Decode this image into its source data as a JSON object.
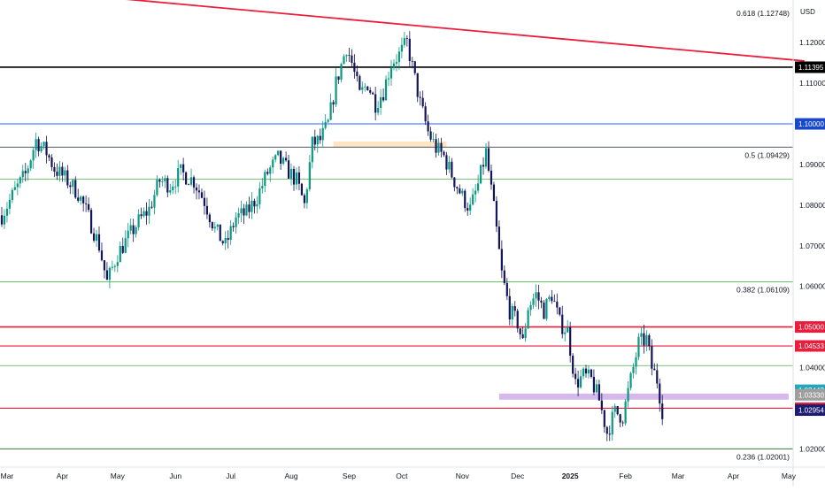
{
  "chart_data": {
    "type": "candlestick",
    "currency": "USD",
    "x_ticks": [
      {
        "label": "Mar",
        "bar": 2
      },
      {
        "label": "Apr",
        "bar": 23
      },
      {
        "label": "May",
        "bar": 44
      },
      {
        "label": "Jun",
        "bar": 66
      },
      {
        "label": "Jul",
        "bar": 87
      },
      {
        "label": "Aug",
        "bar": 110
      },
      {
        "label": "Sep",
        "bar": 132
      },
      {
        "label": "Oct",
        "bar": 152
      },
      {
        "label": "Nov",
        "bar": 175
      },
      {
        "label": "Dec",
        "bar": 196
      },
      {
        "label": "2025",
        "bar": 216,
        "bold": true
      },
      {
        "label": "Feb",
        "bar": 237
      },
      {
        "label": "Mar",
        "bar": 257
      },
      {
        "label": "Apr",
        "bar": 278
      },
      {
        "label": "May",
        "bar": 299
      }
    ],
    "y_ticks": [
      "1.12000",
      "1.11000",
      "1.10000",
      "1.09000",
      "1.08000",
      "1.07000",
      "1.06000",
      "1.04000",
      "1.02000"
    ],
    "ylim": [
      1.0155,
      1.1305
    ],
    "fib_levels": [
      {
        "label": "0.618 (1.12748)",
        "value": 1.12748,
        "show_line": false
      },
      {
        "label": "0.5 (1.09429)",
        "value": 1.09429,
        "show_line": true,
        "color": "#1e222d"
      },
      {
        "label": "0.382 (1.06109)",
        "value": 1.06109,
        "show_line": true,
        "color": "#4caf50"
      },
      {
        "label": "0.236 (1.02001)",
        "value": 1.02001,
        "show_line": true,
        "color": "#1b5e20"
      }
    ],
    "horizontal_lines": [
      {
        "value": 1.11395,
        "color": "#000000",
        "width": 1.6
      },
      {
        "value": 1.1,
        "color": "#2962ff",
        "width": 1
      },
      {
        "value": 1.05,
        "color": "#e91e3c",
        "width": 1.6
      },
      {
        "value": 1.04533,
        "color": "#e91e3c",
        "width": 1.2
      },
      {
        "value": 1.03,
        "color": "#e91e3c",
        "width": 1.2
      },
      {
        "value": 1.0864,
        "color": "#4caf50",
        "width": 0.8
      },
      {
        "value": 1.0405,
        "color": "#4caf50",
        "width": 0.8
      }
    ],
    "price_tags": [
      {
        "label": "1.11395",
        "value": 1.11395,
        "bg": "#000000",
        "fg": "#ffffff"
      },
      {
        "label": "1.10000",
        "value": 1.1,
        "bg": "#1848cc",
        "fg": "#ffffff"
      },
      {
        "label": "1.05000",
        "value": 1.05,
        "bg": "#e91e3c",
        "fg": "#ffffff"
      },
      {
        "label": "1.04533",
        "value": 1.04533,
        "bg": "#e91e3c",
        "fg": "#ffffff"
      },
      {
        "label": "1.03443",
        "value": 1.03443,
        "bg": "#26a6b8",
        "fg": "#ffffff"
      },
      {
        "label": "1.03330",
        "value": 1.0333,
        "bg": "#9e9e9e",
        "fg": "#ffffff"
      },
      {
        "label": "1.03000",
        "value": 1.03,
        "bg": "#e91e3c",
        "fg": "#ffffff"
      },
      {
        "label": "1.02954",
        "value": 1.02954,
        "bg": "#1c1c6e",
        "fg": "#ffffff"
      }
    ],
    "trendline": {
      "start_bar": -2,
      "start_value": 1.1336,
      "end_bar": 305,
      "end_value": 1.1155,
      "color": "#e91e3c"
    },
    "zones": [
      {
        "from_bar": 126,
        "to_bar": 169,
        "low": 1.0943,
        "high": 1.0957,
        "color": "#ffdcb0"
      },
      {
        "from_bar": 189,
        "to_bar": 299,
        "low": 1.0321,
        "high": 1.0336,
        "color": "#c8a2e6"
      }
    ],
    "colors": {
      "up": "#089981",
      "down": "#14145a",
      "axis_text": "#131722",
      "border": "#e0e3eb"
    },
    "anchors": [
      [
        0,
        1.0775
      ],
      [
        5,
        1.0835
      ],
      [
        9,
        1.0875
      ],
      [
        13,
        1.096
      ],
      [
        17,
        1.093
      ],
      [
        20,
        1.089
      ],
      [
        25,
        1.086
      ],
      [
        29,
        1.083
      ],
      [
        33,
        1.077
      ],
      [
        37,
        1.07
      ],
      [
        40,
        1.061
      ],
      [
        44,
        1.068
      ],
      [
        48,
        1.072
      ],
      [
        52,
        1.076
      ],
      [
        56,
        1.079
      ],
      [
        60,
        1.086
      ],
      [
        64,
        1.085
      ],
      [
        68,
        1.088
      ],
      [
        73,
        1.086
      ],
      [
        77,
        1.081
      ],
      [
        81,
        1.074
      ],
      [
        85,
        1.07
      ],
      [
        89,
        1.077
      ],
      [
        93,
        1.078
      ],
      [
        97,
        1.082
      ],
      [
        101,
        1.088
      ],
      [
        105,
        1.0915
      ],
      [
        108,
        1.089
      ],
      [
        112,
        1.086
      ],
      [
        115,
        1.08
      ],
      [
        118,
        1.095
      ],
      [
        121,
        1.096
      ],
      [
        124,
        1.1
      ],
      [
        127,
        1.11
      ],
      [
        131,
        1.119
      ],
      [
        133,
        1.115
      ],
      [
        136,
        1.107
      ],
      [
        139,
        1.11
      ],
      [
        142,
        1.105
      ],
      [
        145,
        1.108
      ],
      [
        148,
        1.115
      ],
      [
        151,
        1.117
      ],
      [
        154,
        1.12
      ],
      [
        156,
        1.114
      ],
      [
        159,
        1.105
      ],
      [
        162,
        1.098
      ],
      [
        165,
        1.094
      ],
      [
        168,
        1.092
      ],
      [
        172,
        1.086
      ],
      [
        175,
        1.082
      ],
      [
        178,
        1.079
      ],
      [
        181,
        1.085
      ],
      [
        184,
        1.093
      ],
      [
        187,
        1.079
      ],
      [
        190,
        1.063
      ],
      [
        193,
        1.054
      ],
      [
        196,
        1.051
      ],
      [
        198,
        1.046
      ],
      [
        200,
        1.055
      ],
      [
        203,
        1.058
      ],
      [
        206,
        1.054
      ],
      [
        209,
        1.058
      ],
      [
        212,
        1.051
      ],
      [
        215,
        1.049
      ],
      [
        218,
        1.036
      ],
      [
        221,
        1.038
      ],
      [
        224,
        1.037
      ],
      [
        227,
        1.032
      ],
      [
        230,
        1.024
      ],
      [
        233,
        1.029
      ],
      [
        236,
        1.028
      ],
      [
        239,
        1.037
      ],
      [
        242,
        1.046
      ],
      [
        245,
        1.047
      ],
      [
        247,
        1.04
      ],
      [
        249,
        1.037
      ],
      [
        251,
        1.0295
      ]
    ]
  }
}
